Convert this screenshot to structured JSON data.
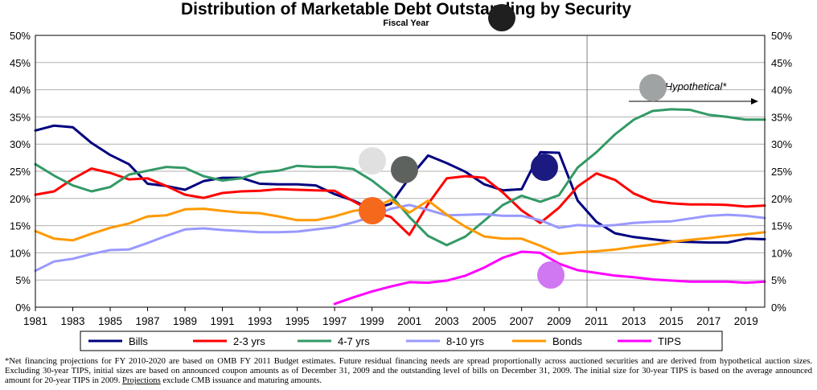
{
  "chart_data": {
    "type": "line",
    "title": "Distribution of Marketable Debt Outstanding by Security",
    "subtitle": "Fiscal Year",
    "xlabel": "",
    "ylabel": "",
    "xlim": [
      1981,
      2020
    ],
    "ylim": [
      0,
      50
    ],
    "y_ticks": [
      "0%",
      "5%",
      "10%",
      "15%",
      "20%",
      "25%",
      "30%",
      "35%",
      "40%",
      "45%",
      "50%"
    ],
    "x_ticks": [
      "1981",
      "1983",
      "1985",
      "1987",
      "1989",
      "1991",
      "1993",
      "1995",
      "1997",
      "1999",
      "2001",
      "2003",
      "2005",
      "2007",
      "2009",
      "2011",
      "2013",
      "2015",
      "2017",
      "2019"
    ],
    "projection_start": 2010.5,
    "annotation": "Hypothetical*",
    "grid": "horizontal",
    "legend_position": "bottom",
    "series": [
      {
        "name": "Bills",
        "color": "#00007f",
        "points": [
          [
            1981,
            32.5
          ],
          [
            1982,
            33.4
          ],
          [
            1983,
            33.1
          ],
          [
            1984,
            30.2
          ],
          [
            1985,
            28.0
          ],
          [
            1986,
            26.3
          ],
          [
            1987,
            22.7
          ],
          [
            1988,
            22.3
          ],
          [
            1989,
            21.6
          ],
          [
            1990,
            23.2
          ],
          [
            1991,
            23.8
          ],
          [
            1992,
            23.8
          ],
          [
            1993,
            22.7
          ],
          [
            1994,
            22.6
          ],
          [
            1995,
            22.6
          ],
          [
            1996,
            22.4
          ],
          [
            1997,
            20.8
          ],
          [
            1998,
            19.6
          ],
          [
            1999,
            18.0
          ],
          [
            2000,
            19.0
          ],
          [
            2001,
            23.8
          ],
          [
            2002,
            27.9
          ],
          [
            2003,
            26.5
          ],
          [
            2004,
            24.9
          ],
          [
            2005,
            22.6
          ],
          [
            2006,
            21.5
          ],
          [
            2007,
            21.7
          ],
          [
            2008,
            28.5
          ],
          [
            2009,
            28.4
          ],
          [
            2010,
            19.6
          ],
          [
            2011,
            15.7
          ],
          [
            2012,
            13.6
          ],
          [
            2013,
            12.9
          ],
          [
            2014,
            12.5
          ],
          [
            2015,
            12.1
          ],
          [
            2016,
            12.0
          ],
          [
            2017,
            11.9
          ],
          [
            2018,
            11.9
          ],
          [
            2019,
            12.6
          ],
          [
            2020,
            12.5
          ]
        ]
      },
      {
        "name": "2-3 yrs",
        "color": "#ff0000",
        "points": [
          [
            1981,
            20.7
          ],
          [
            1982,
            21.3
          ],
          [
            1983,
            23.6
          ],
          [
            1984,
            25.5
          ],
          [
            1985,
            24.7
          ],
          [
            1986,
            23.5
          ],
          [
            1987,
            23.7
          ],
          [
            1988,
            22.3
          ],
          [
            1989,
            20.7
          ],
          [
            1990,
            20.1
          ],
          [
            1991,
            21.0
          ],
          [
            1992,
            21.3
          ],
          [
            1993,
            21.4
          ],
          [
            1994,
            21.7
          ],
          [
            1995,
            21.6
          ],
          [
            1996,
            21.5
          ],
          [
            1997,
            21.4
          ],
          [
            1998,
            19.5
          ],
          [
            1999,
            17.6
          ],
          [
            2000,
            16.6
          ],
          [
            2001,
            13.3
          ],
          [
            2002,
            19.0
          ],
          [
            2003,
            23.7
          ],
          [
            2004,
            24.1
          ],
          [
            2005,
            23.8
          ],
          [
            2006,
            21.1
          ],
          [
            2007,
            17.8
          ],
          [
            2008,
            15.5
          ],
          [
            2009,
            18.3
          ],
          [
            2010,
            22.2
          ],
          [
            2011,
            24.6
          ],
          [
            2012,
            23.4
          ],
          [
            2013,
            20.9
          ],
          [
            2014,
            19.5
          ],
          [
            2015,
            19.1
          ],
          [
            2016,
            18.9
          ],
          [
            2017,
            18.9
          ],
          [
            2018,
            18.8
          ],
          [
            2019,
            18.5
          ],
          [
            2020,
            18.7
          ]
        ]
      },
      {
        "name": "4-7 yrs",
        "color": "#339966",
        "points": [
          [
            1981,
            26.3
          ],
          [
            1982,
            24.2
          ],
          [
            1983,
            22.4
          ],
          [
            1984,
            21.3
          ],
          [
            1985,
            22.1
          ],
          [
            1986,
            24.4
          ],
          [
            1987,
            25.1
          ],
          [
            1988,
            25.8
          ],
          [
            1989,
            25.6
          ],
          [
            1990,
            24.1
          ],
          [
            1991,
            23.3
          ],
          [
            1992,
            23.7
          ],
          [
            1993,
            24.8
          ],
          [
            1994,
            25.1
          ],
          [
            1995,
            26.0
          ],
          [
            1996,
            25.8
          ],
          [
            1997,
            25.8
          ],
          [
            1998,
            25.4
          ],
          [
            1999,
            23.3
          ],
          [
            2000,
            20.6
          ],
          [
            2001,
            16.6
          ],
          [
            2002,
            13.1
          ],
          [
            2003,
            11.4
          ],
          [
            2004,
            13.0
          ],
          [
            2005,
            15.9
          ],
          [
            2006,
            18.8
          ],
          [
            2007,
            20.5
          ],
          [
            2008,
            19.4
          ],
          [
            2009,
            20.6
          ],
          [
            2010,
            25.7
          ],
          [
            2011,
            28.5
          ],
          [
            2012,
            31.8
          ],
          [
            2013,
            34.5
          ],
          [
            2014,
            36.1
          ],
          [
            2015,
            36.4
          ],
          [
            2016,
            36.3
          ],
          [
            2017,
            35.4
          ],
          [
            2018,
            35.0
          ],
          [
            2019,
            34.5
          ],
          [
            2020,
            34.5
          ]
        ]
      },
      {
        "name": "8-10 yrs",
        "color": "#9999ff",
        "points": [
          [
            1981,
            6.7
          ],
          [
            1982,
            8.4
          ],
          [
            1983,
            8.9
          ],
          [
            1984,
            9.8
          ],
          [
            1985,
            10.5
          ],
          [
            1986,
            10.6
          ],
          [
            1987,
            11.8
          ],
          [
            1988,
            13.1
          ],
          [
            1989,
            14.3
          ],
          [
            1990,
            14.5
          ],
          [
            1991,
            14.2
          ],
          [
            1992,
            14.0
          ],
          [
            1993,
            13.8
          ],
          [
            1994,
            13.8
          ],
          [
            1995,
            13.9
          ],
          [
            1996,
            14.3
          ],
          [
            1997,
            14.7
          ],
          [
            1998,
            15.6
          ],
          [
            1999,
            16.6
          ],
          [
            2000,
            18.1
          ],
          [
            2001,
            18.8
          ],
          [
            2002,
            17.9
          ],
          [
            2003,
            16.9
          ],
          [
            2004,
            17.0
          ],
          [
            2005,
            17.1
          ],
          [
            2006,
            16.8
          ],
          [
            2007,
            16.8
          ],
          [
            2008,
            16.0
          ],
          [
            2009,
            14.6
          ],
          [
            2010,
            15.1
          ],
          [
            2011,
            14.9
          ],
          [
            2012,
            15.1
          ],
          [
            2013,
            15.5
          ],
          [
            2014,
            15.7
          ],
          [
            2015,
            15.8
          ],
          [
            2016,
            16.3
          ],
          [
            2017,
            16.8
          ],
          [
            2018,
            17.0
          ],
          [
            2019,
            16.8
          ],
          [
            2020,
            16.4
          ]
        ]
      },
      {
        "name": "Bonds",
        "color": "#ff9900",
        "points": [
          [
            1981,
            14.0
          ],
          [
            1982,
            12.6
          ],
          [
            1983,
            12.3
          ],
          [
            1984,
            13.5
          ],
          [
            1985,
            14.6
          ],
          [
            1986,
            15.4
          ],
          [
            1987,
            16.7
          ],
          [
            1988,
            16.9
          ],
          [
            1989,
            18.0
          ],
          [
            1990,
            18.1
          ],
          [
            1991,
            17.7
          ],
          [
            1992,
            17.4
          ],
          [
            1993,
            17.3
          ],
          [
            1994,
            16.7
          ],
          [
            1995,
            16.0
          ],
          [
            1996,
            16.0
          ],
          [
            1997,
            16.7
          ],
          [
            1998,
            17.7
          ],
          [
            1999,
            18.2
          ],
          [
            2000,
            19.7
          ],
          [
            2001,
            17.4
          ],
          [
            2002,
            19.6
          ],
          [
            2003,
            17.0
          ],
          [
            2004,
            14.8
          ],
          [
            2005,
            13.0
          ],
          [
            2006,
            12.6
          ],
          [
            2007,
            12.6
          ],
          [
            2008,
            11.3
          ],
          [
            2009,
            9.8
          ],
          [
            2010,
            10.1
          ],
          [
            2011,
            10.3
          ],
          [
            2012,
            10.6
          ],
          [
            2013,
            11.1
          ],
          [
            2014,
            11.5
          ],
          [
            2015,
            12.0
          ],
          [
            2016,
            12.4
          ],
          [
            2017,
            12.7
          ],
          [
            2018,
            13.1
          ],
          [
            2019,
            13.4
          ],
          [
            2020,
            13.8
          ]
        ]
      },
      {
        "name": "TIPS",
        "color": "#ff00ff",
        "points": [
          [
            1997,
            0.6
          ],
          [
            1998,
            1.8
          ],
          [
            1999,
            2.9
          ],
          [
            2000,
            3.8
          ],
          [
            2001,
            4.6
          ],
          [
            2002,
            4.5
          ],
          [
            2003,
            4.9
          ],
          [
            2004,
            5.8
          ],
          [
            2005,
            7.3
          ],
          [
            2006,
            9.1
          ],
          [
            2007,
            10.2
          ],
          [
            2008,
            10.0
          ],
          [
            2009,
            8.0
          ],
          [
            2010,
            6.8
          ],
          [
            2011,
            6.3
          ],
          [
            2012,
            5.8
          ],
          [
            2013,
            5.5
          ],
          [
            2014,
            5.1
          ],
          [
            2015,
            4.9
          ],
          [
            2016,
            4.7
          ],
          [
            2017,
            4.7
          ],
          [
            2018,
            4.7
          ],
          [
            2019,
            4.5
          ],
          [
            2020,
            4.7
          ]
        ]
      }
    ]
  },
  "footnote": {
    "text_1": "*Net financing projections for FY 2010-2020 are based on OMB FY 2011 Budget estimates. Future residual financing needs are spread proportionally across auctioned securities and are derived from hypothetical auction sizes. Excluding 30-year TIPS, initial sizes are based on announced coupon amounts as of December 31, 2009 and the outstanding level of bills on December 31, 2009. The initial size for 30-year TIPS is based on the average announced amount for 20-year TIPS in 2009. ",
    "underlined": "Projections",
    "text_2": " exclude CMB issuance and maturing amounts."
  },
  "markers": [
    {
      "name": "marker-black",
      "color": "#1f1f1f"
    },
    {
      "name": "marker-lightgray",
      "color": "#e0e0e0"
    },
    {
      "name": "marker-darkgray",
      "color": "#5e625f"
    },
    {
      "name": "marker-navy",
      "color": "#1a1a80"
    },
    {
      "name": "marker-orange",
      "color": "#f5691d"
    },
    {
      "name": "marker-gray",
      "color": "#a0a3a3"
    },
    {
      "name": "marker-violet",
      "color": "#cf78f2"
    }
  ]
}
